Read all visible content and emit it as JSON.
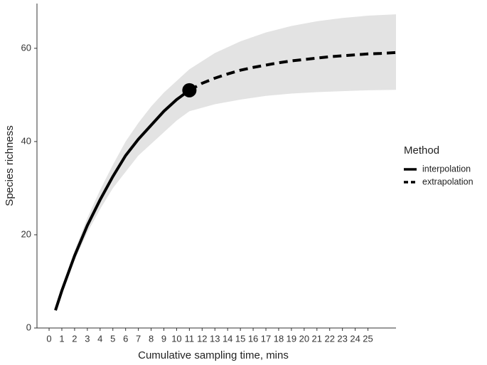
{
  "chart_data": {
    "type": "line",
    "xlabel": "Cumulative sampling time, mins",
    "ylabel": "Species richness",
    "xlim": [
      -0.95,
      27.2
    ],
    "ylim": [
      0,
      69.6
    ],
    "xticks": [
      0,
      1,
      2,
      3,
      4,
      5,
      6,
      7,
      8,
      9,
      10,
      11,
      12,
      13,
      14,
      15,
      16,
      17,
      18,
      19,
      20,
      21,
      22,
      23,
      24,
      25
    ],
    "yticks": [
      0,
      20,
      40,
      60
    ],
    "legend_title": "Method",
    "legend_position": "right",
    "series": [
      {
        "name": "interpolation",
        "color": "#000000",
        "linestyle": "solid",
        "x": [
          0.5,
          1,
          2,
          3,
          4,
          5,
          6,
          7,
          8,
          9,
          10,
          11
        ],
        "values": [
          3.8,
          8,
          15.5,
          22,
          27.5,
          32.5,
          37,
          40.5,
          43.5,
          46.5,
          49,
          51
        ]
      },
      {
        "name": "extrapolation",
        "color": "#000000",
        "linestyle": "dashed",
        "x": [
          11,
          12,
          13,
          14,
          15,
          16,
          17,
          18,
          19,
          20,
          21,
          22,
          23,
          24,
          25,
          26,
          27.2
        ],
        "values": [
          51,
          52.5,
          53.6,
          54.5,
          55.3,
          55.9,
          56.4,
          56.9,
          57.3,
          57.6,
          57.9,
          58.2,
          58.4,
          58.6,
          58.8,
          58.9,
          59.1
        ]
      }
    ],
    "band": {
      "color": "#e3e3e3",
      "x": [
        0.5,
        1,
        2,
        3,
        4,
        5,
        6,
        7,
        8,
        9,
        10,
        11,
        13,
        15,
        17,
        19,
        21,
        23,
        25,
        27.2
      ],
      "lower": [
        3.5,
        7.5,
        14.5,
        20.5,
        25.5,
        30,
        33.5,
        37,
        39.5,
        42,
        44.5,
        46.5,
        48,
        49,
        49.8,
        50.3,
        50.6,
        50.8,
        51,
        51.1
      ],
      "upper": [
        4.2,
        8.6,
        16.6,
        23.6,
        29.6,
        35,
        40,
        44,
        47.5,
        50.5,
        53,
        55.5,
        59,
        61.5,
        63.4,
        64.8,
        65.8,
        66.5,
        67,
        67.3
      ]
    },
    "observed": {
      "x": 11,
      "y": 51,
      "color": "#000000"
    }
  }
}
